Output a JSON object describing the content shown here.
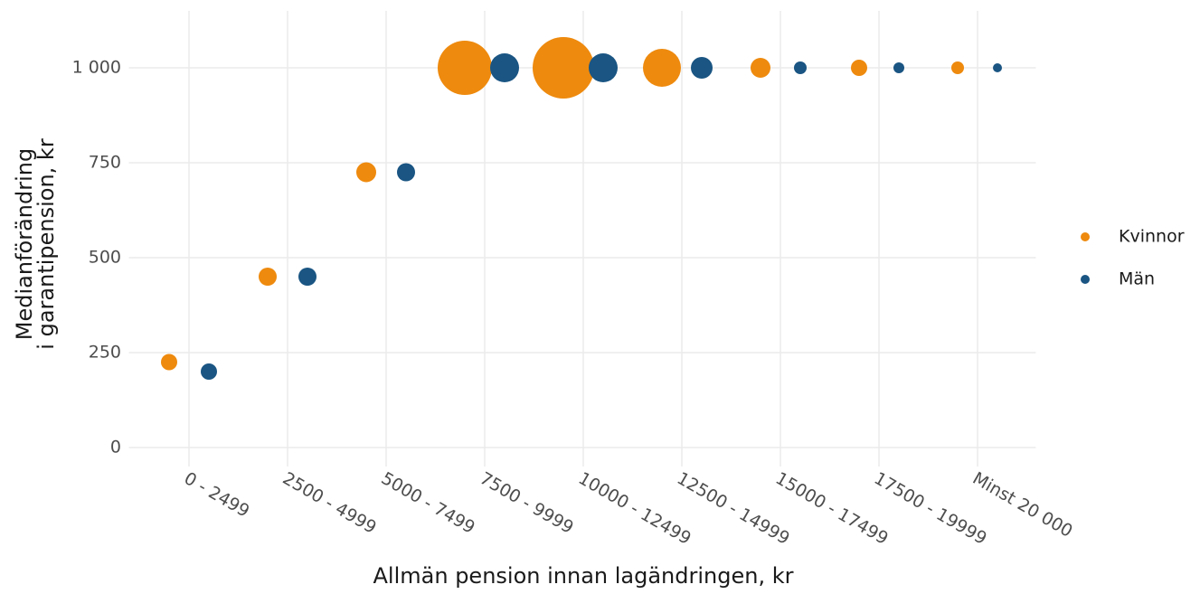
{
  "chart_data": {
    "type": "bubble",
    "x_label": "Allmän pension innan lagändringen, kr",
    "y_label": [
      "Medianförändring",
      "i garantipension, kr"
    ],
    "categories": [
      "0 - 2499",
      "2500 - 4999",
      "5000 - 7499",
      "7500 - 9999",
      "10000 - 12499",
      "12500 - 14999",
      "15000 - 17499",
      "17500 - 19999",
      "Minst 20 000"
    ],
    "series": [
      {
        "name": "Kvinnor",
        "color": "#ee8a0e",
        "values": [
          225,
          450,
          725,
          1000,
          1000,
          1000,
          1000,
          1000,
          1000
        ],
        "sizes": [
          81,
          100,
          121,
          900,
          1156,
          441,
          121,
          81,
          49
        ]
      },
      {
        "name": "Män",
        "color": "#1a5583",
        "values": [
          200,
          450,
          725,
          1000,
          1000,
          1000,
          1000,
          1000,
          1000
        ],
        "sizes": [
          81,
          100,
          100,
          256,
          256,
          144,
          49,
          36,
          25
        ]
      }
    ],
    "ylim": [
      -50,
      1150
    ],
    "yticks": [
      0,
      250,
      500,
      750,
      {
        "value": 1000,
        "label": "1 000"
      }
    ],
    "grid": true,
    "legend": "right"
  }
}
